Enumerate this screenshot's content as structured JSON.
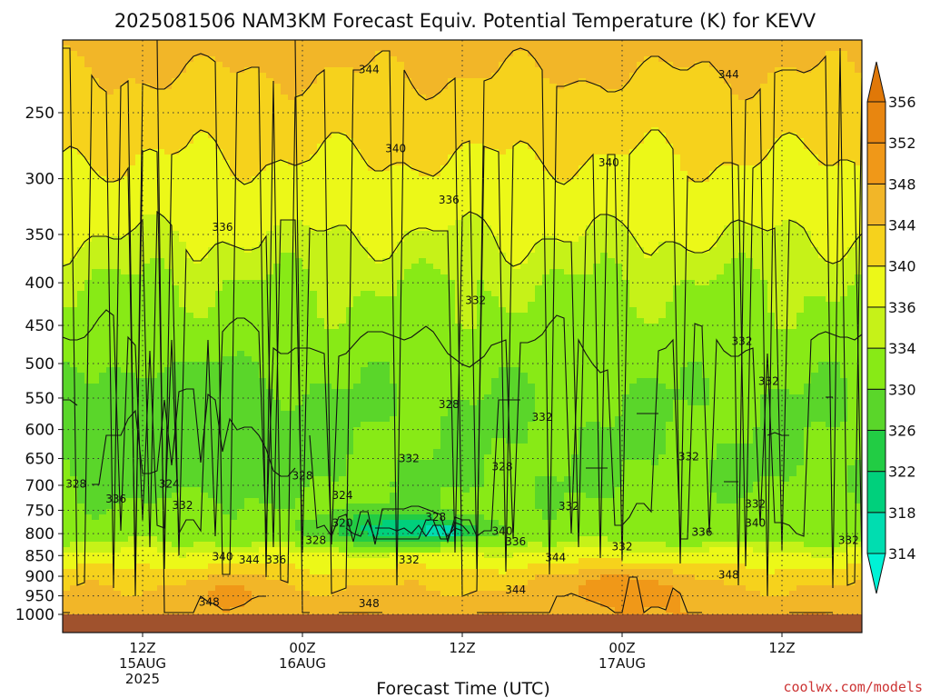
{
  "chart_data": {
    "type": "heatmap",
    "title": "2025081506 NAM3KM Forecast Equiv. Potential Temperature (K) for KEVV",
    "xlabel": "Forecast Time (UTC)",
    "ylabel": "",
    "credit": "coolwx.com/models",
    "y_scale": "log",
    "y_inverted": true,
    "ylim": [
      1000,
      200
    ],
    "yticks": [
      250,
      300,
      350,
      400,
      450,
      500,
      550,
      600,
      650,
      700,
      750,
      800,
      850,
      900,
      950,
      1000
    ],
    "xlim_hours": [
      0,
      60
    ],
    "xticks": [
      {
        "hour": 6,
        "line1": "12Z",
        "line2": "15AUG",
        "line3": "2025"
      },
      {
        "hour": 18,
        "line1": "00Z",
        "line2": "16AUG",
        "line3": ""
      },
      {
        "hour": 30,
        "line1": "12Z",
        "line2": "",
        "line3": ""
      },
      {
        "hour": 42,
        "line1": "00Z",
        "line2": "17AUG",
        "line3": ""
      },
      {
        "hour": 54,
        "line1": "12Z",
        "line2": "",
        "line3": ""
      }
    ],
    "grid": true,
    "colorbar": {
      "levels": [
        314,
        318,
        322,
        326,
        330,
        334,
        336,
        340,
        344,
        348,
        352,
        356
      ],
      "colors": [
        "#00f2d6",
        "#00ddb0",
        "#00d07c",
        "#22cc44",
        "#5ad62a",
        "#88ea16",
        "#c6f218",
        "#ecf818",
        "#f6d21c",
        "#f2b628",
        "#f09818",
        "#e88610",
        "#e07808"
      ],
      "extend": "both"
    },
    "ground_color": "#a0522d",
    "theta_e_profile": [
      {
        "p": 200,
        "value": 346
      },
      {
        "p": 250,
        "value": 342
      },
      {
        "p": 300,
        "value": 339
      },
      {
        "p": 350,
        "value": 336
      },
      {
        "p": 400,
        "value": 334
      },
      {
        "p": 450,
        "value": 333
      },
      {
        "p": 500,
        "value": 331
      },
      {
        "p": 550,
        "value": 330
      },
      {
        "p": 600,
        "value": 330
      },
      {
        "p": 650,
        "value": 330
      },
      {
        "p": 700,
        "value": 330
      },
      {
        "p": 750,
        "value": 331
      },
      {
        "p": 800,
        "value": 332
      },
      {
        "p": 850,
        "value": 337
      },
      {
        "p": 900,
        "value": 342
      },
      {
        "p": 950,
        "value": 345
      },
      {
        "p": 1000,
        "value": 347
      }
    ],
    "features": [
      {
        "hour_start": 0,
        "hour_end": 18,
        "p_top": 490,
        "p_bottom": 720,
        "value": 327
      },
      {
        "hour_start": 18,
        "hour_end": 32,
        "p_top": 745,
        "p_bottom": 835,
        "value": 320
      },
      {
        "hour_start": 26,
        "hour_end": 31,
        "p_top": 775,
        "p_bottom": 815,
        "value": 315
      },
      {
        "hour_start": 36,
        "hour_end": 48,
        "p_top": 865,
        "p_bottom": 1000,
        "value": 351
      },
      {
        "hour_start": 8,
        "hour_end": 17,
        "p_top": 890,
        "p_bottom": 1000,
        "value": 349
      },
      {
        "hour_start": 50,
        "hour_end": 60,
        "p_top": 700,
        "p_bottom": 790,
        "value": 331
      }
    ],
    "contour_levels": [
      320,
      324,
      328,
      332,
      336,
      340,
      344,
      348
    ],
    "contour_labels": [
      {
        "text": "344",
        "hour": 23,
        "p": 222
      },
      {
        "text": "344",
        "hour": 50,
        "p": 225
      },
      {
        "text": "340",
        "hour": 25,
        "p": 276
      },
      {
        "text": "340",
        "hour": 41,
        "p": 287
      },
      {
        "text": "336",
        "hour": 29,
        "p": 318
      },
      {
        "text": "336",
        "hour": 12,
        "p": 343
      },
      {
        "text": "332",
        "hour": 31,
        "p": 420
      },
      {
        "text": "332",
        "hour": 51,
        "p": 470
      },
      {
        "text": "332",
        "hour": 53,
        "p": 525
      },
      {
        "text": "328",
        "hour": 29,
        "p": 560
      },
      {
        "text": "332",
        "hour": 36,
        "p": 580
      },
      {
        "text": "332",
        "hour": 26,
        "p": 650
      },
      {
        "text": "328",
        "hour": 33,
        "p": 665
      },
      {
        "text": "332",
        "hour": 47,
        "p": 647
      },
      {
        "text": "328",
        "hour": 1,
        "p": 697
      },
      {
        "text": "324",
        "hour": 8,
        "p": 697
      },
      {
        "text": "328",
        "hour": 18,
        "p": 682
      },
      {
        "text": "336",
        "hour": 4,
        "p": 727
      },
      {
        "text": "332",
        "hour": 9,
        "p": 740
      },
      {
        "text": "324",
        "hour": 21,
        "p": 720
      },
      {
        "text": "332",
        "hour": 38,
        "p": 742
      },
      {
        "text": "332",
        "hour": 52,
        "p": 737
      },
      {
        "text": "320",
        "hour": 21,
        "p": 777
      },
      {
        "text": "328",
        "hour": 28,
        "p": 764
      },
      {
        "text": "340",
        "hour": 33,
        "p": 795
      },
      {
        "text": "336",
        "hour": 34,
        "p": 818
      },
      {
        "text": "336",
        "hour": 48,
        "p": 797
      },
      {
        "text": "340",
        "hour": 52,
        "p": 777
      },
      {
        "text": "332",
        "hour": 59,
        "p": 815
      },
      {
        "text": "328",
        "hour": 19,
        "p": 815
      },
      {
        "text": "332",
        "hour": 42,
        "p": 829
      },
      {
        "text": "340",
        "hour": 12,
        "p": 853
      },
      {
        "text": "344",
        "hour": 14,
        "p": 860
      },
      {
        "text": "336",
        "hour": 16,
        "p": 860
      },
      {
        "text": "332",
        "hour": 26,
        "p": 860
      },
      {
        "text": "344",
        "hour": 37,
        "p": 855
      },
      {
        "text": "348",
        "hour": 50,
        "p": 897
      },
      {
        "text": "344",
        "hour": 34,
        "p": 935
      },
      {
        "text": "348",
        "hour": 11,
        "p": 967
      },
      {
        "text": "348",
        "hour": 23,
        "p": 970
      }
    ]
  }
}
